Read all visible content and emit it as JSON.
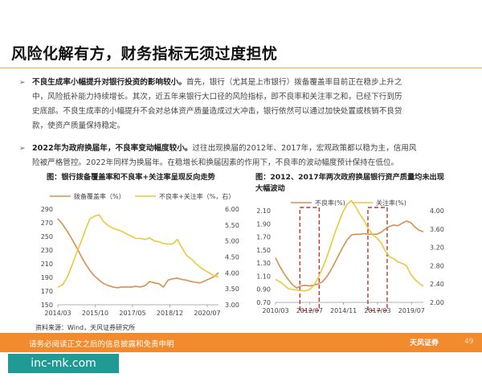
{
  "page": {
    "title": "风险化解有方，财务指标无须过度担忧",
    "bullets": [
      {
        "lead": "不良生成率小幅提升对银行投资的影响较小。",
        "lines": [
          "首先，银行（尤其是上市银行）拨备覆盖率目前正在稳步上升之",
          "中，风险抵补能力持续增长。其次，近五年来银行大口径的风险指标，即不良率和关注率之和，已经下行到历",
          "史底部。不良生成率的小幅提升不会对总体资产质量造成过大冲击，银行依然可以通过加快处置或核销不良贷",
          "款，使资产质量保持稳定。"
        ]
      },
      {
        "lead": "2022年为政府换届年，不良率变动幅度较小。",
        "lines": [
          "过往出现换届的2012年、2017年，宏观政策都以稳为主，信用风",
          "险被严格管控。2022年同样为换届年。在稳增长和换届因素的作用下，不良率的波动幅度预计保持在低位。"
        ]
      }
    ],
    "source": "资料来源：Wind，天风证券研究所",
    "footer": "请务必阅读正文之后的信息披露和免责申明",
    "footer_logo": "天风证券",
    "page_number": "49",
    "watermark": "inc-mk.com"
  },
  "colors": {
    "series_a": "#d98f4e",
    "series_b": "#e8c93c",
    "highlight": "#c0392b",
    "footer": "#f28a2e",
    "watermark": "#1f9a94"
  },
  "chart_data": [
    {
      "type": "line",
      "title": "图：银行拨备覆盖率和不良率+关注率呈现反向走势",
      "x_ticks": [
        "2014/03",
        "2015/10",
        "2017/05",
        "2018/12",
        "2020/07"
      ],
      "y_left_ticks": [
        150,
        170,
        190,
        210,
        230,
        250,
        270,
        290
      ],
      "y_right_ticks": [
        3.0,
        3.5,
        4.0,
        4.5,
        5.0,
        5.5,
        6.0
      ],
      "series": [
        {
          "name": "拨备覆盖率（%）",
          "axis": "left",
          "values": [
            276,
            268,
            258,
            247,
            235,
            222,
            210,
            200,
            192,
            186,
            181,
            178,
            176,
            175,
            176,
            176,
            176,
            177,
            176,
            178,
            184,
            182,
            181,
            176,
            186,
            188,
            189,
            187,
            186,
            184,
            183,
            182,
            185,
            188,
            191,
            197
          ]
        },
        {
          "name": "不良率+关注率（%，右）",
          "axis": "right",
          "values": [
            3.55,
            3.62,
            3.85,
            4.2,
            4.6,
            4.95,
            5.35,
            5.7,
            5.78,
            5.82,
            5.6,
            5.48,
            5.4,
            5.35,
            5.3,
            5.22,
            5.15,
            5.08,
            5.08,
            5.05,
            5.1,
            5.0,
            4.98,
            4.92,
            4.9,
            4.9,
            5.05,
            4.8,
            4.55,
            4.45,
            4.3,
            4.18,
            4.08,
            4.0,
            3.9,
            3.88
          ]
        }
      ]
    },
    {
      "type": "line",
      "title": "图：2012、2017年两次政府换届银行资产质量均未出现大幅波动",
      "x_ticks": [
        "2010/03",
        "2012/07",
        "2014/11",
        "2017/03",
        "2019/07"
      ],
      "y_left_ticks": [
        0.7,
        0.9,
        1.1,
        1.3,
        1.5,
        1.7,
        1.9,
        2.1
      ],
      "y_right_ticks": [
        2.0,
        2.4,
        2.8,
        3.2,
        3.6,
        4.0
      ],
      "highlight_periods": [
        "2012/07",
        "2017/03"
      ],
      "series": [
        {
          "name": "不良率(%)",
          "axis": "left",
          "values": [
            1.38,
            1.25,
            1.14,
            1.05,
            0.97,
            0.92,
            0.95,
            0.96,
            0.95,
            0.96,
            0.98,
            1.01,
            1.08,
            1.18,
            1.3,
            1.43,
            1.55,
            1.66,
            1.73,
            1.74,
            1.74,
            1.75,
            1.74,
            1.74,
            1.74,
            1.77,
            1.82,
            1.86,
            1.88,
            1.87,
            1.91,
            1.94,
            1.92,
            1.85,
            1.8,
            1.78
          ]
        },
        {
          "name": "关注率(%)",
          "axis": "right",
          "values": [
            2.5,
            2.45,
            2.38,
            2.3,
            2.28,
            2.27,
            2.26,
            2.25,
            2.28,
            2.36,
            2.52,
            2.72,
            2.95,
            3.22,
            3.5,
            3.75,
            3.98,
            4.15,
            4.22,
            4.08,
            3.92,
            3.78,
            3.6,
            3.48,
            3.4,
            3.3,
            3.12,
            3.0,
            2.95,
            2.88,
            2.85,
            2.8,
            2.62,
            2.5,
            2.42,
            2.35
          ]
        }
      ]
    }
  ]
}
